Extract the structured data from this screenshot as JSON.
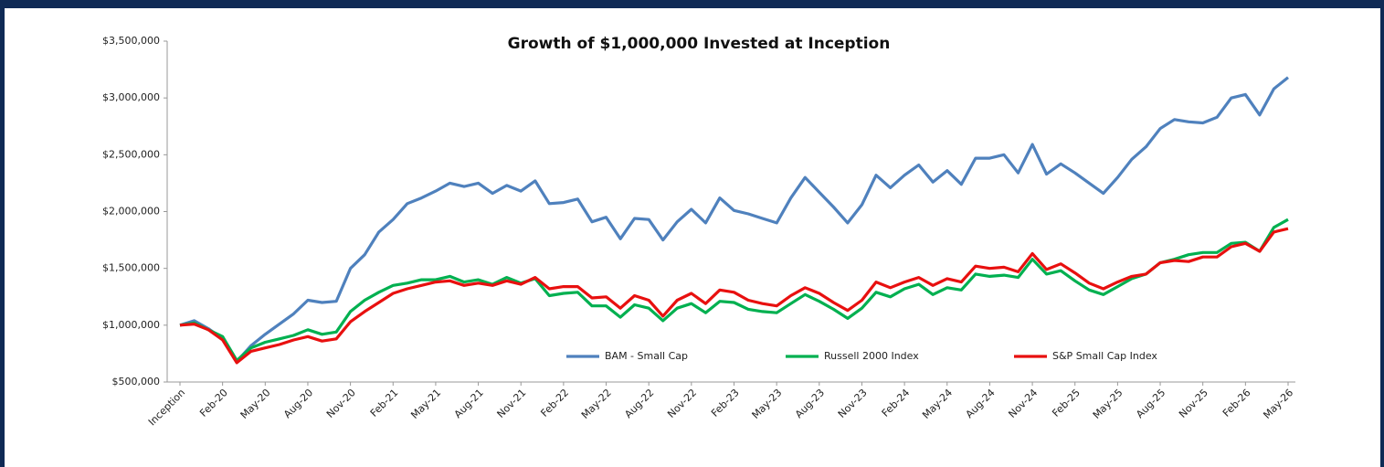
{
  "chart_data": {
    "type": "line",
    "title": "Growth of $1,000,000 Invested at Inception",
    "categories": [
      "Inception",
      null,
      null,
      "Feb-20",
      null,
      null,
      "May-20",
      null,
      null,
      "Aug-20",
      null,
      null,
      "Nov-20",
      null,
      null,
      "Feb-21",
      null,
      null,
      "May-21",
      null,
      null,
      "Aug-21",
      null,
      null,
      "Nov-21",
      null,
      null,
      "Feb-22",
      null,
      null,
      "May-22",
      null,
      null,
      "Aug-22",
      null,
      null,
      "Nov-22",
      null,
      null,
      "Feb-23",
      null,
      null,
      "May-23",
      null,
      null,
      "Aug-23",
      null,
      null,
      "Nov-23",
      null,
      null,
      "Feb-24",
      null,
      null,
      "May-24",
      null,
      null,
      "Aug-24",
      null,
      null,
      "Nov-24",
      null,
      null,
      "Feb-25",
      null,
      null,
      "May-25",
      null,
      null,
      "Aug-25",
      null,
      null,
      "Nov-25",
      null,
      null,
      "Feb-26",
      null,
      null,
      "May-26"
    ],
    "series": [
      {
        "name": "BAM - Small Cap",
        "color": "#4f81bd",
        "values": [
          1000000,
          1040000,
          970000,
          880000,
          680000,
          820000,
          920000,
          1010000,
          1100000,
          1220000,
          1200000,
          1210000,
          1500000,
          1620000,
          1820000,
          1930000,
          2070000,
          2120000,
          2180000,
          2250000,
          2220000,
          2250000,
          2160000,
          2230000,
          2180000,
          2270000,
          2070000,
          2080000,
          2110000,
          1910000,
          1950000,
          1760000,
          1940000,
          1930000,
          1750000,
          1910000,
          2020000,
          1900000,
          2120000,
          2010000,
          1980000,
          1940000,
          1900000,
          2120000,
          2300000,
          2170000,
          2040000,
          1900000,
          2060000,
          2320000,
          2210000,
          2320000,
          2410000,
          2260000,
          2360000,
          2240000,
          2470000,
          2470000,
          2500000,
          2340000,
          2590000,
          2330000,
          2420000,
          2340000,
          2250000,
          2160000,
          2300000,
          2460000,
          2570000,
          2730000,
          2810000,
          2790000,
          2780000,
          2830000,
          3000000,
          3030000,
          2850000,
          3080000,
          3180000
        ]
      },
      {
        "name": "Russell 2000 Index",
        "color": "#00b050",
        "values": [
          1000000,
          1020000,
          960000,
          900000,
          690000,
          800000,
          850000,
          880000,
          910000,
          960000,
          920000,
          940000,
          1120000,
          1220000,
          1290000,
          1350000,
          1370000,
          1400000,
          1400000,
          1430000,
          1380000,
          1400000,
          1360000,
          1420000,
          1370000,
          1410000,
          1260000,
          1280000,
          1290000,
          1170000,
          1170000,
          1070000,
          1180000,
          1150000,
          1040000,
          1150000,
          1190000,
          1110000,
          1210000,
          1200000,
          1140000,
          1120000,
          1110000,
          1190000,
          1270000,
          1210000,
          1140000,
          1060000,
          1150000,
          1290000,
          1250000,
          1320000,
          1360000,
          1270000,
          1330000,
          1310000,
          1450000,
          1430000,
          1440000,
          1420000,
          1580000,
          1450000,
          1480000,
          1390000,
          1310000,
          1270000,
          1340000,
          1410000,
          1450000,
          1550000,
          1580000,
          1620000,
          1640000,
          1640000,
          1720000,
          1730000,
          1650000,
          1860000,
          1930000
        ]
      },
      {
        "name": "S&P Small Cap Index",
        "color": "#e8100f",
        "values": [
          1000000,
          1010000,
          960000,
          870000,
          670000,
          770000,
          800000,
          830000,
          870000,
          900000,
          860000,
          880000,
          1030000,
          1120000,
          1200000,
          1280000,
          1320000,
          1350000,
          1380000,
          1390000,
          1350000,
          1370000,
          1350000,
          1390000,
          1360000,
          1420000,
          1320000,
          1340000,
          1340000,
          1240000,
          1250000,
          1150000,
          1260000,
          1220000,
          1080000,
          1220000,
          1280000,
          1190000,
          1310000,
          1290000,
          1220000,
          1190000,
          1170000,
          1260000,
          1330000,
          1280000,
          1200000,
          1130000,
          1220000,
          1380000,
          1330000,
          1380000,
          1420000,
          1350000,
          1410000,
          1380000,
          1520000,
          1500000,
          1510000,
          1470000,
          1630000,
          1490000,
          1540000,
          1460000,
          1370000,
          1320000,
          1380000,
          1430000,
          1450000,
          1550000,
          1570000,
          1560000,
          1600000,
          1600000,
          1690000,
          1720000,
          1650000,
          1820000,
          1850000
        ]
      }
    ],
    "ylim": [
      500000,
      3500000
    ],
    "yticks": [
      {
        "value": 500000,
        "label": "$500,000"
      },
      {
        "value": 1000000,
        "label": "$1,000,000"
      },
      {
        "value": 1500000,
        "label": "$1,500,000"
      },
      {
        "value": 2000000,
        "label": "$2,000,000"
      },
      {
        "value": 2500000,
        "label": "$2,500,000"
      },
      {
        "value": 3000000,
        "label": "$3,000,000"
      },
      {
        "value": 3500000,
        "label": "$3,500,000"
      }
    ],
    "grid": false,
    "legend": "bottom"
  }
}
